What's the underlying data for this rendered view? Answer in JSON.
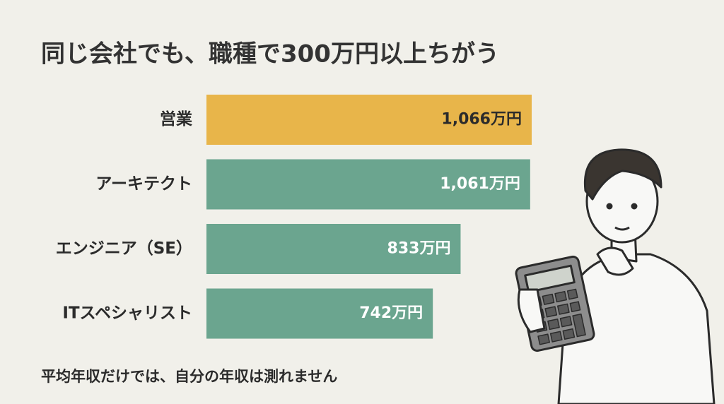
{
  "chart_data": {
    "type": "bar",
    "orientation": "horizontal",
    "title": "同じ会社でも、職種で300万円以上ちがう",
    "categories": [
      "営業",
      "アーキテクト",
      "エンジニア（SE）",
      "ITスペシャリスト"
    ],
    "values": [
      1066,
      1061,
      833,
      742
    ],
    "value_labels": [
      "1,066万円",
      "1,061万円",
      "833万円",
      "742万円"
    ],
    "colors": [
      "#e8b54a",
      "#6ba58f",
      "#6ba58f",
      "#6ba58f"
    ],
    "note": "平均年収だけでは、自分の年収は測れません"
  }
}
